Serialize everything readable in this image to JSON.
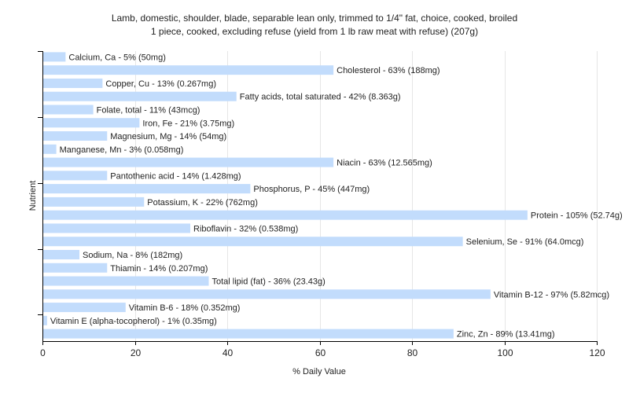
{
  "chart_data": {
    "type": "bar",
    "orientation": "horizontal",
    "title_line1": "Lamb, domestic, shoulder, blade, separable lean only, trimmed to 1/4\" fat, choice, cooked, broiled",
    "title_line2": "1 piece, cooked, excluding refuse (yield from 1 lb raw meat with refuse) (207g)",
    "xlabel": "% Daily Value",
    "ylabel": "Nutrient",
    "xlim": [
      0,
      120
    ],
    "xticks": [
      0,
      20,
      40,
      60,
      80,
      100,
      120
    ],
    "grid": true,
    "bar_color": "#c2dcfc",
    "categories": [
      "Calcium, Ca",
      "Cholesterol",
      "Copper, Cu",
      "Fatty acids, total saturated",
      "Folate, total",
      "Iron, Fe",
      "Magnesium, Mg",
      "Manganese, Mn",
      "Niacin",
      "Pantothenic acid",
      "Phosphorus, P",
      "Potassium, K",
      "Protein",
      "Riboflavin",
      "Selenium, Se",
      "Sodium, Na",
      "Thiamin",
      "Total lipid (fat)",
      "Vitamin B-12",
      "Vitamin B-6",
      "Vitamin E (alpha-tocopherol)",
      "Zinc, Zn"
    ],
    "values": [
      5,
      63,
      13,
      42,
      11,
      21,
      14,
      3,
      63,
      14,
      45,
      22,
      105,
      32,
      91,
      8,
      14,
      36,
      97,
      18,
      1,
      89
    ],
    "labels": [
      "Calcium, Ca - 5% (50mg)",
      "Cholesterol - 63% (188mg)",
      "Copper, Cu - 13% (0.267mg)",
      "Fatty acids, total saturated - 42% (8.363g)",
      "Folate, total - 11% (43mcg)",
      "Iron, Fe - 21% (3.75mg)",
      "Magnesium, Mg - 14% (54mg)",
      "Manganese, Mn - 3% (0.058mg)",
      "Niacin - 63% (12.565mg)",
      "Pantothenic acid - 14% (1.428mg)",
      "Phosphorus, P - 45% (447mg)",
      "Potassium, K - 22% (762mg)",
      "Protein - 105% (52.74g)",
      "Riboflavin - 32% (0.538mg)",
      "Selenium, Se - 91% (64.0mcg)",
      "Sodium, Na - 8% (182mg)",
      "Thiamin - 14% (0.207mg)",
      "Total lipid (fat) - 36% (23.43g)",
      "Vitamin B-12 - 97% (5.82mcg)",
      "Vitamin B-6 - 18% (0.352mg)",
      "Vitamin E (alpha-tocopherol) - 1% (0.35mg)",
      "Zinc, Zn - 89% (13.41mg)"
    ]
  }
}
